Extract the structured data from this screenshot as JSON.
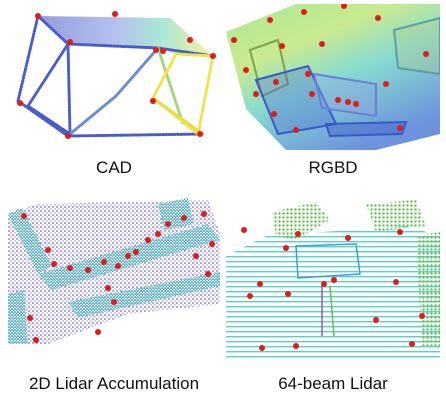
{
  "figure": {
    "panels": [
      {
        "id": "cad",
        "caption": "CAD"
      },
      {
        "id": "rgbd",
        "caption": "RGBD"
      },
      {
        "id": "lidar2d",
        "caption": "2D Lidar Accumulation"
      },
      {
        "id": "lidar64",
        "caption": "64-beam Lidar"
      }
    ],
    "colors": {
      "keypoint": "#e11a1a",
      "cloud_blue": "#3b4cc0",
      "cloud_cyan": "#2fc4c4",
      "cloud_green": "#63c04a",
      "cloud_yellow": "#f2e34a"
    }
  }
}
